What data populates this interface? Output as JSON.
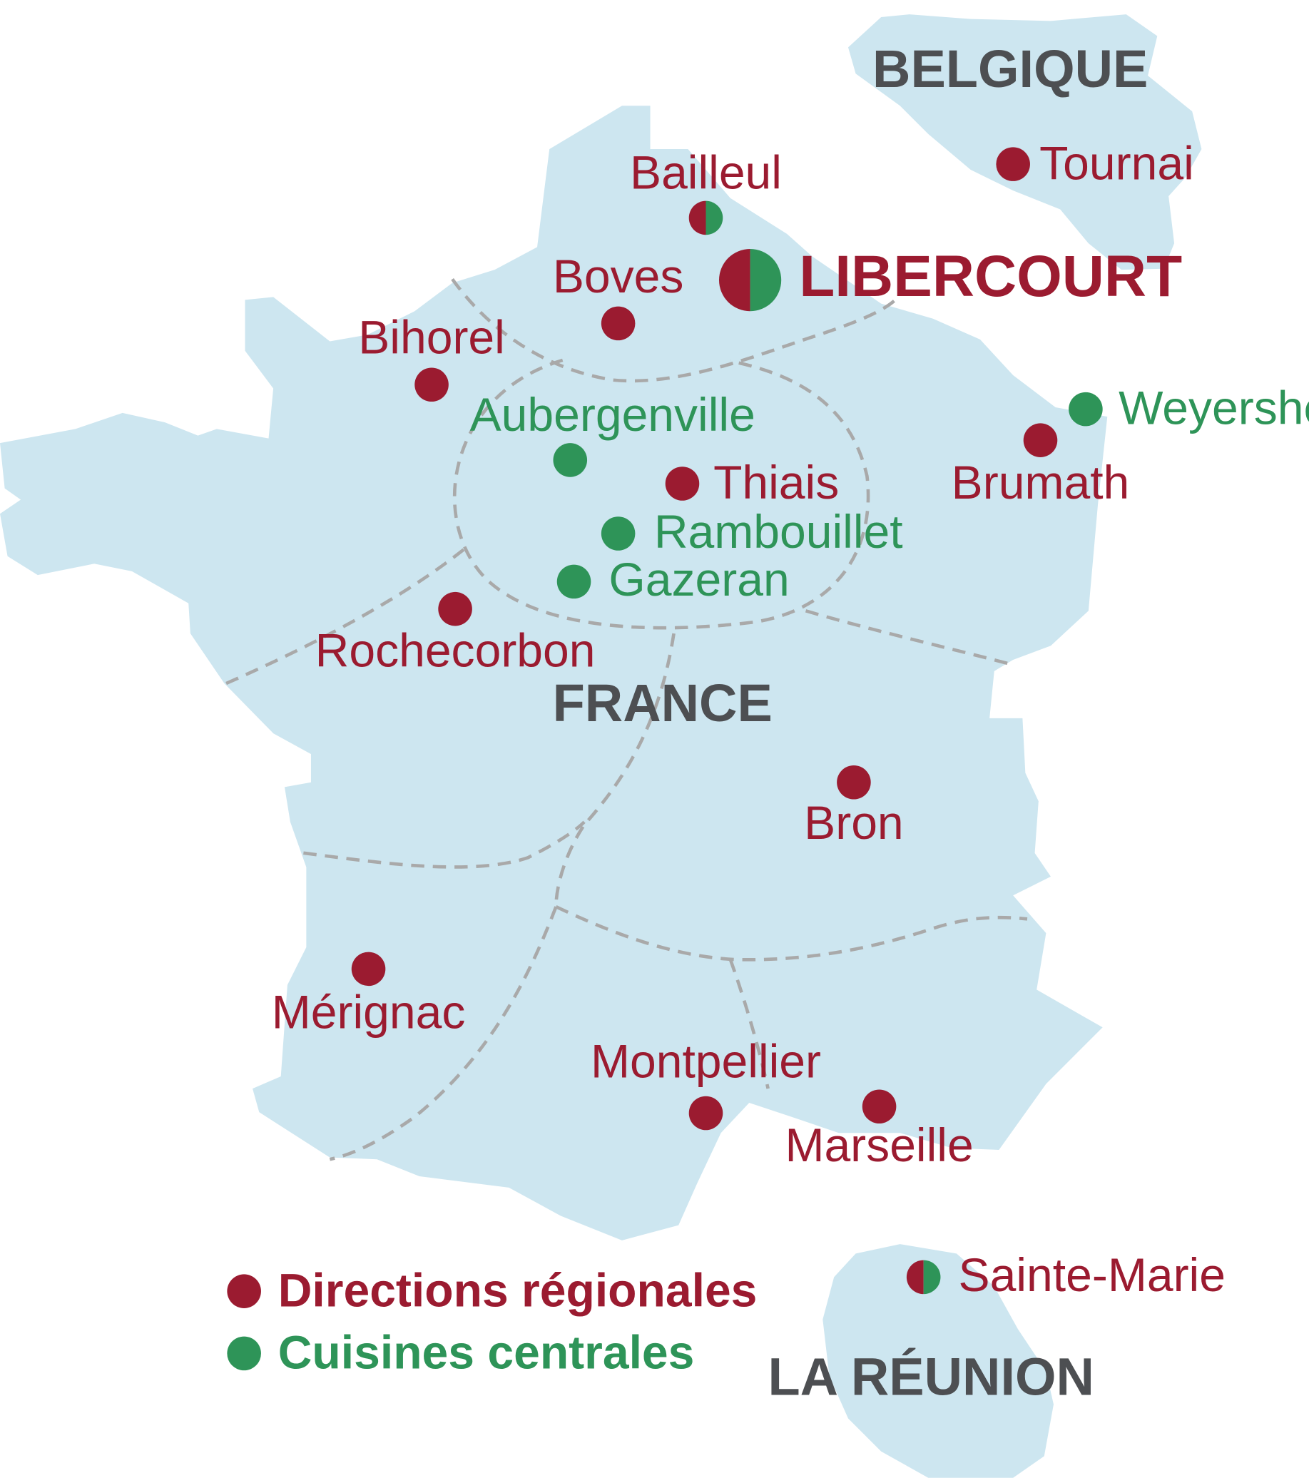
{
  "colors": {
    "land": "#cde6f0",
    "directions": "#9b1b30",
    "cuisines": "#2e9458",
    "country_text": "#4d4f52",
    "border": "#a9a9a9"
  },
  "countries": {
    "belgique": "BELGIQUE",
    "france": "FRANCE",
    "reunion": "LA RÉUNION"
  },
  "headquarters": {
    "name": "LIBERCOURT",
    "type": "both"
  },
  "sites": {
    "tournai": {
      "name": "Tournai",
      "type": "direction"
    },
    "bailleul": {
      "name": "Bailleul",
      "type": "both"
    },
    "boves": {
      "name": "Boves",
      "type": "direction"
    },
    "bihorel": {
      "name": "Bihorel",
      "type": "direction"
    },
    "aubergenville": {
      "name": "Aubergenville",
      "type": "cuisine"
    },
    "thiais": {
      "name": "Thiais",
      "type": "direction"
    },
    "rambouillet": {
      "name": "Rambouillet",
      "type": "cuisine"
    },
    "gazeran": {
      "name": "Gazeran",
      "type": "cuisine"
    },
    "weyersheim": {
      "name": "Weyersheim",
      "type": "cuisine"
    },
    "brumath": {
      "name": "Brumath",
      "type": "direction"
    },
    "rochecorbon": {
      "name": "Rochecorbon",
      "type": "direction"
    },
    "bron": {
      "name": "Bron",
      "type": "direction"
    },
    "merignac": {
      "name": "Mérignac",
      "type": "direction"
    },
    "montpellier": {
      "name": "Montpellier",
      "type": "direction"
    },
    "marseille": {
      "name": "Marseille",
      "type": "direction"
    },
    "sainte_marie": {
      "name": "Sainte-Marie",
      "type": "both"
    }
  },
  "legend": {
    "directions": "Directions régionales",
    "cuisines": "Cuisines centrales"
  }
}
